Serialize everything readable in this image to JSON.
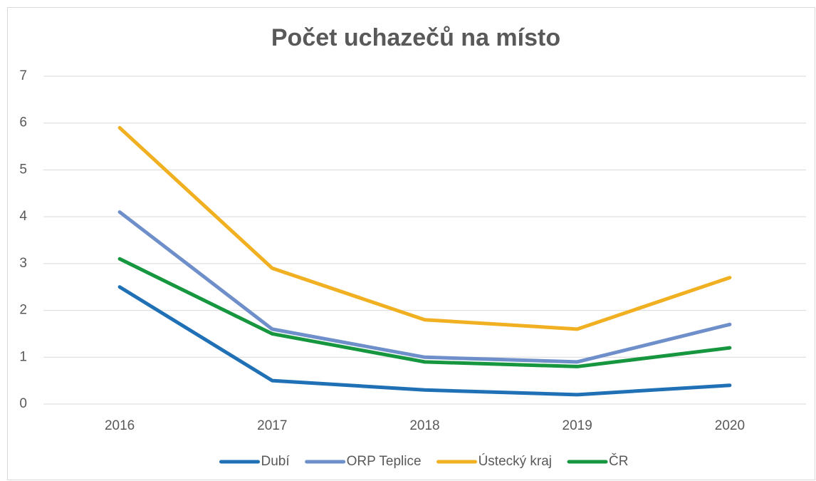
{
  "chart_data": {
    "type": "line",
    "title": "Počet uchazečů na místo",
    "categories": [
      "2016",
      "2017",
      "2018",
      "2019",
      "2020"
    ],
    "series": [
      {
        "name": "Dubí",
        "color": "#2070b6",
        "values": [
          2.5,
          0.5,
          0.3,
          0.2,
          0.4
        ]
      },
      {
        "name": "ORP Teplice",
        "color": "#6e8fca",
        "values": [
          4.1,
          1.6,
          1.0,
          0.9,
          1.7
        ]
      },
      {
        "name": "Ústecký kraj",
        "color": "#f0b021",
        "values": [
          5.9,
          2.9,
          1.8,
          1.6,
          2.7
        ]
      },
      {
        "name": "ČR",
        "color": "#16963f",
        "values": [
          3.1,
          1.5,
          0.9,
          0.8,
          1.2
        ]
      }
    ],
    "ylim": [
      0,
      7
    ],
    "yticks": [
      0,
      1,
      2,
      3,
      4,
      5,
      6,
      7
    ],
    "grid": true,
    "legend": "bottom"
  }
}
